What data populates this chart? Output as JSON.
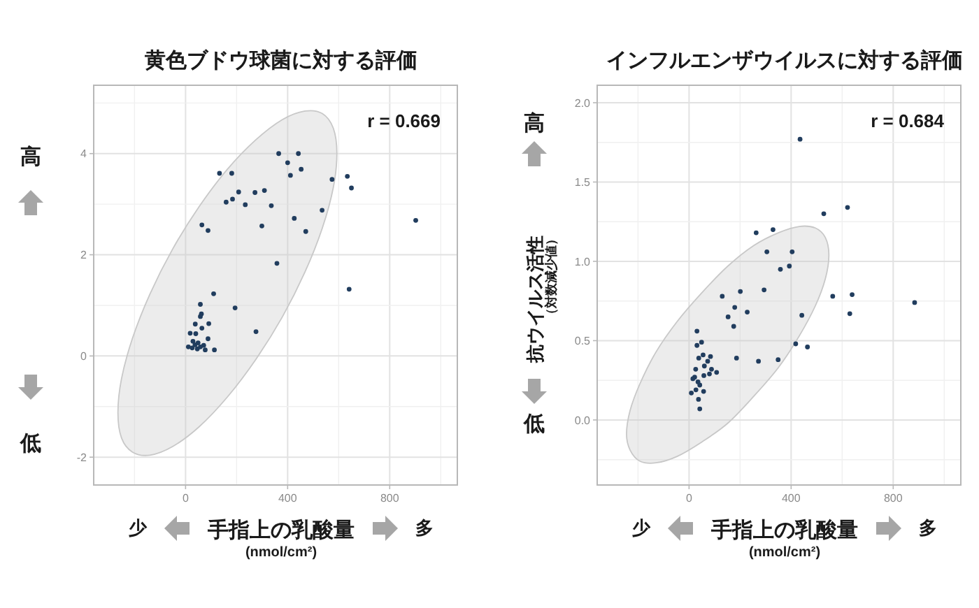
{
  "chart_data": [
    {
      "type": "scatter",
      "title": "黄色ブドウ球菌に対する評価",
      "xlabel": "手指上の乳酸量\n(nmol/cm²)",
      "annotations": [
        "r = 0.669",
        "高",
        "低",
        "少",
        "多"
      ],
      "grid": true,
      "xlim": [
        -360,
        1065
      ],
      "xticks": [
        0,
        400,
        800
      ],
      "ylim": [
        -2.55,
        5.35
      ],
      "yticks": [
        -2,
        0,
        2,
        4
      ],
      "series": [
        {
          "type": "area",
          "color": "#c8c8c8",
          "x": [
            -265,
            -251,
            -208,
            -140,
            -51,
            53,
            164,
            275,
            379,
            468,
            536,
            579,
            593,
            579,
            536,
            468,
            379,
            275,
            164,
            53,
            -51,
            -140,
            -208,
            -251,
            -265
          ],
          "values": [
            -1.12,
            -0.45,
            0.35,
            1.22,
            2.11,
            2.95,
            3.69,
            4.27,
            4.67,
            4.84,
            4.79,
            4.5,
            4.0,
            3.33,
            2.53,
            1.66,
            0.77,
            -0.07,
            -0.81,
            -1.4,
            -1.79,
            -1.96,
            -1.9,
            -1.62,
            -1.12
          ]
        },
        {
          "type": "scatter",
          "marker": "circle",
          "color": "#213d5e",
          "x": [
            365,
            442,
            400,
            453,
            411,
            133,
            181,
            574,
            634,
            650,
            159,
            184,
            208,
            234,
            272,
            309,
            336,
            535,
            426,
            299,
            471,
            64,
            88,
            902,
            358,
            641,
            110,
            194,
            276,
            58,
            62,
            58,
            38,
            91,
            18,
            40,
            64,
            88,
            29,
            49,
            37,
            71,
            11,
            26,
            46,
            77,
            113,
            58
          ],
          "values": [
            4.0,
            4.0,
            3.82,
            3.69,
            3.57,
            3.61,
            3.61,
            3.49,
            3.55,
            3.32,
            3.04,
            3.1,
            3.24,
            2.99,
            3.23,
            3.27,
            2.97,
            2.88,
            2.72,
            2.57,
            2.46,
            2.59,
            2.48,
            2.68,
            1.83,
            1.32,
            1.23,
            0.95,
            0.48,
            1.02,
            0.83,
            0.78,
            0.63,
            0.64,
            0.45,
            0.44,
            0.55,
            0.34,
            0.29,
            0.26,
            0.22,
            0.21,
            0.18,
            0.16,
            0.14,
            0.12,
            0.12,
            0.18
          ]
        }
      ]
    },
    {
      "type": "scatter",
      "title": "インフルエンザウイルスに対する評価",
      "xlabel": "手指上の乳酸量\n(nmol/cm²)",
      "ylabel": "抗ウイルス活性（対数減少値）",
      "annotations": [
        "r = 0.684",
        "高",
        "低",
        "少",
        "多"
      ],
      "grid": true,
      "xlim": [
        -360,
        1065
      ],
      "xticks": [
        0,
        400,
        800
      ],
      "ylim": [
        -0.41,
        2.11
      ],
      "yticks": [
        {
          "value": 0,
          "label": "0.0"
        },
        {
          "value": 0.5,
          "label": "0.5"
        },
        {
          "value": 1,
          "label": "1.0"
        },
        {
          "value": 1.5,
          "label": "1.5"
        },
        {
          "value": 2,
          "label": "2.0"
        }
      ],
      "series": [
        {
          "type": "area",
          "color": "#c8c8c8",
          "x": [
            -245,
            -231,
            -192,
            -129,
            -47,
            49,
            152,
            254,
            350,
            432,
            495,
            534,
            548,
            534,
            495,
            432,
            350,
            254,
            152,
            49,
            -47,
            -129,
            -192,
            -231,
            -245
          ],
          "values": [
            -0.09,
            0.06,
            0.23,
            0.43,
            0.62,
            0.8,
            0.97,
            1.1,
            1.18,
            1.22,
            1.21,
            1.15,
            1.04,
            0.89,
            0.72,
            0.53,
            0.33,
            0.15,
            -0.02,
            -0.14,
            -0.23,
            -0.27,
            -0.26,
            -0.19,
            -0.09
          ]
        },
        {
          "type": "scatter",
          "marker": "circle",
          "color": "#213d5e",
          "x": [
            435,
            528,
            621,
            263,
            329,
            305,
            404,
            358,
            393,
            294,
            201,
            130,
            179,
            153,
            228,
            175,
            563,
            639,
            884,
            630,
            442,
            418,
            464,
            186,
            272,
            349,
            31,
            31,
            49,
            38,
            55,
            84,
            73,
            60,
            26,
            88,
            108,
            80,
            58,
            22,
            35,
            15,
            42,
            57,
            9,
            37,
            42,
            27
          ],
          "values": [
            1.77,
            1.3,
            1.34,
            1.18,
            1.2,
            1.06,
            1.06,
            0.95,
            0.97,
            0.82,
            0.81,
            0.78,
            0.71,
            0.65,
            0.68,
            0.59,
            0.78,
            0.79,
            0.74,
            0.67,
            0.66,
            0.48,
            0.46,
            0.39,
            0.37,
            0.38,
            0.56,
            0.47,
            0.49,
            0.39,
            0.41,
            0.4,
            0.37,
            0.34,
            0.32,
            0.32,
            0.3,
            0.29,
            0.28,
            0.27,
            0.24,
            0.26,
            0.22,
            0.18,
            0.17,
            0.13,
            0.07,
            0.19
          ]
        }
      ]
    }
  ]
}
